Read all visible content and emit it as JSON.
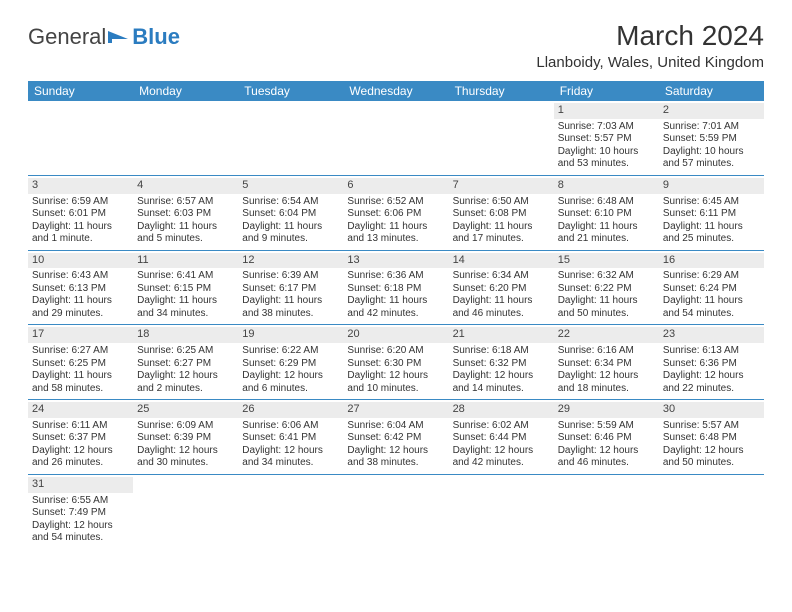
{
  "logo": {
    "text1": "General",
    "text2": "Blue",
    "accent_color": "#2b7cc0"
  },
  "title": "March 2024",
  "location": "Llanboidy, Wales, United Kingdom",
  "colors": {
    "header_bg": "#3a8ac4",
    "header_text": "#ffffff",
    "daynum_bg": "#ececec",
    "rule": "#3a8ac4",
    "body_text": "#333333"
  },
  "daysOfWeek": [
    "Sunday",
    "Monday",
    "Tuesday",
    "Wednesday",
    "Thursday",
    "Friday",
    "Saturday"
  ],
  "weeks": [
    [
      {
        "empty": true
      },
      {
        "empty": true
      },
      {
        "empty": true
      },
      {
        "empty": true
      },
      {
        "empty": true
      },
      {
        "num": "1",
        "sunrise": "Sunrise: 7:03 AM",
        "sunset": "Sunset: 5:57 PM",
        "daylight": "Daylight: 10 hours and 53 minutes."
      },
      {
        "num": "2",
        "sunrise": "Sunrise: 7:01 AM",
        "sunset": "Sunset: 5:59 PM",
        "daylight": "Daylight: 10 hours and 57 minutes."
      }
    ],
    [
      {
        "num": "3",
        "sunrise": "Sunrise: 6:59 AM",
        "sunset": "Sunset: 6:01 PM",
        "daylight": "Daylight: 11 hours and 1 minute."
      },
      {
        "num": "4",
        "sunrise": "Sunrise: 6:57 AM",
        "sunset": "Sunset: 6:03 PM",
        "daylight": "Daylight: 11 hours and 5 minutes."
      },
      {
        "num": "5",
        "sunrise": "Sunrise: 6:54 AM",
        "sunset": "Sunset: 6:04 PM",
        "daylight": "Daylight: 11 hours and 9 minutes."
      },
      {
        "num": "6",
        "sunrise": "Sunrise: 6:52 AM",
        "sunset": "Sunset: 6:06 PM",
        "daylight": "Daylight: 11 hours and 13 minutes."
      },
      {
        "num": "7",
        "sunrise": "Sunrise: 6:50 AM",
        "sunset": "Sunset: 6:08 PM",
        "daylight": "Daylight: 11 hours and 17 minutes."
      },
      {
        "num": "8",
        "sunrise": "Sunrise: 6:48 AM",
        "sunset": "Sunset: 6:10 PM",
        "daylight": "Daylight: 11 hours and 21 minutes."
      },
      {
        "num": "9",
        "sunrise": "Sunrise: 6:45 AM",
        "sunset": "Sunset: 6:11 PM",
        "daylight": "Daylight: 11 hours and 25 minutes."
      }
    ],
    [
      {
        "num": "10",
        "sunrise": "Sunrise: 6:43 AM",
        "sunset": "Sunset: 6:13 PM",
        "daylight": "Daylight: 11 hours and 29 minutes."
      },
      {
        "num": "11",
        "sunrise": "Sunrise: 6:41 AM",
        "sunset": "Sunset: 6:15 PM",
        "daylight": "Daylight: 11 hours and 34 minutes."
      },
      {
        "num": "12",
        "sunrise": "Sunrise: 6:39 AM",
        "sunset": "Sunset: 6:17 PM",
        "daylight": "Daylight: 11 hours and 38 minutes."
      },
      {
        "num": "13",
        "sunrise": "Sunrise: 6:36 AM",
        "sunset": "Sunset: 6:18 PM",
        "daylight": "Daylight: 11 hours and 42 minutes."
      },
      {
        "num": "14",
        "sunrise": "Sunrise: 6:34 AM",
        "sunset": "Sunset: 6:20 PM",
        "daylight": "Daylight: 11 hours and 46 minutes."
      },
      {
        "num": "15",
        "sunrise": "Sunrise: 6:32 AM",
        "sunset": "Sunset: 6:22 PM",
        "daylight": "Daylight: 11 hours and 50 minutes."
      },
      {
        "num": "16",
        "sunrise": "Sunrise: 6:29 AM",
        "sunset": "Sunset: 6:24 PM",
        "daylight": "Daylight: 11 hours and 54 minutes."
      }
    ],
    [
      {
        "num": "17",
        "sunrise": "Sunrise: 6:27 AM",
        "sunset": "Sunset: 6:25 PM",
        "daylight": "Daylight: 11 hours and 58 minutes."
      },
      {
        "num": "18",
        "sunrise": "Sunrise: 6:25 AM",
        "sunset": "Sunset: 6:27 PM",
        "daylight": "Daylight: 12 hours and 2 minutes."
      },
      {
        "num": "19",
        "sunrise": "Sunrise: 6:22 AM",
        "sunset": "Sunset: 6:29 PM",
        "daylight": "Daylight: 12 hours and 6 minutes."
      },
      {
        "num": "20",
        "sunrise": "Sunrise: 6:20 AM",
        "sunset": "Sunset: 6:30 PM",
        "daylight": "Daylight: 12 hours and 10 minutes."
      },
      {
        "num": "21",
        "sunrise": "Sunrise: 6:18 AM",
        "sunset": "Sunset: 6:32 PM",
        "daylight": "Daylight: 12 hours and 14 minutes."
      },
      {
        "num": "22",
        "sunrise": "Sunrise: 6:16 AM",
        "sunset": "Sunset: 6:34 PM",
        "daylight": "Daylight: 12 hours and 18 minutes."
      },
      {
        "num": "23",
        "sunrise": "Sunrise: 6:13 AM",
        "sunset": "Sunset: 6:36 PM",
        "daylight": "Daylight: 12 hours and 22 minutes."
      }
    ],
    [
      {
        "num": "24",
        "sunrise": "Sunrise: 6:11 AM",
        "sunset": "Sunset: 6:37 PM",
        "daylight": "Daylight: 12 hours and 26 minutes."
      },
      {
        "num": "25",
        "sunrise": "Sunrise: 6:09 AM",
        "sunset": "Sunset: 6:39 PM",
        "daylight": "Daylight: 12 hours and 30 minutes."
      },
      {
        "num": "26",
        "sunrise": "Sunrise: 6:06 AM",
        "sunset": "Sunset: 6:41 PM",
        "daylight": "Daylight: 12 hours and 34 minutes."
      },
      {
        "num": "27",
        "sunrise": "Sunrise: 6:04 AM",
        "sunset": "Sunset: 6:42 PM",
        "daylight": "Daylight: 12 hours and 38 minutes."
      },
      {
        "num": "28",
        "sunrise": "Sunrise: 6:02 AM",
        "sunset": "Sunset: 6:44 PM",
        "daylight": "Daylight: 12 hours and 42 minutes."
      },
      {
        "num": "29",
        "sunrise": "Sunrise: 5:59 AM",
        "sunset": "Sunset: 6:46 PM",
        "daylight": "Daylight: 12 hours and 46 minutes."
      },
      {
        "num": "30",
        "sunrise": "Sunrise: 5:57 AM",
        "sunset": "Sunset: 6:48 PM",
        "daylight": "Daylight: 12 hours and 50 minutes."
      }
    ],
    [
      {
        "num": "31",
        "sunrise": "Sunrise: 6:55 AM",
        "sunset": "Sunset: 7:49 PM",
        "daylight": "Daylight: 12 hours and 54 minutes."
      },
      {
        "empty": true
      },
      {
        "empty": true
      },
      {
        "empty": true
      },
      {
        "empty": true
      },
      {
        "empty": true
      },
      {
        "empty": true
      }
    ]
  ]
}
